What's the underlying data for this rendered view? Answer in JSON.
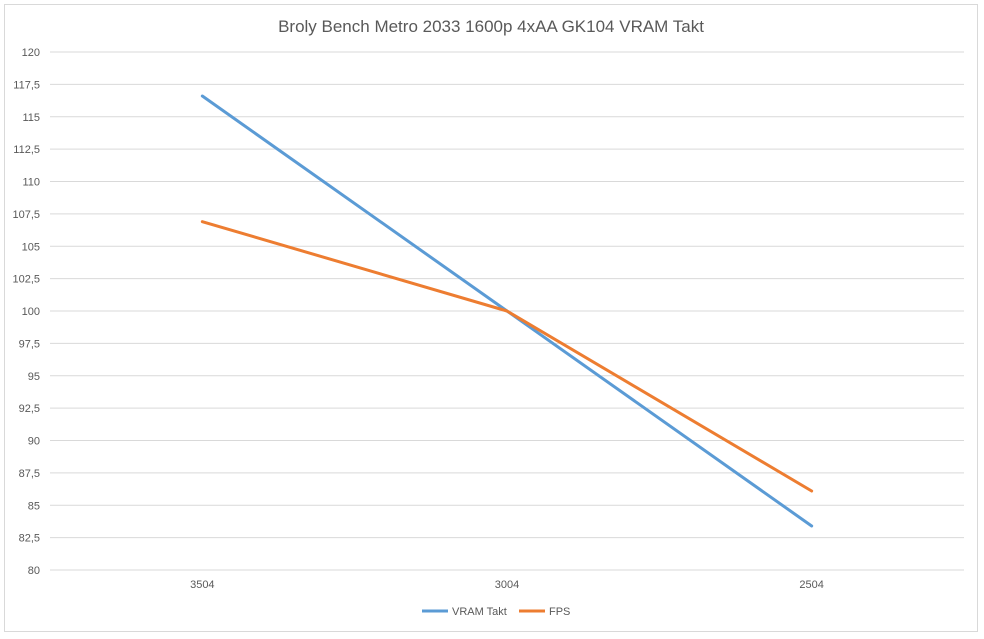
{
  "chart_data": {
    "type": "line",
    "title": "Broly Bench Metro 2033 1600p 4xAA GK104 VRAM Takt",
    "xlabel": "",
    "ylabel": "",
    "categories": [
      "3504",
      "3004",
      "2504"
    ],
    "ylim": [
      80,
      120
    ],
    "yticks": [
      "80",
      "82,5",
      "85",
      "87,5",
      "90",
      "92,5",
      "95",
      "97,5",
      "100",
      "102,5",
      "105",
      "107,5",
      "110",
      "112,5",
      "115",
      "117,5",
      "120"
    ],
    "grid": true,
    "legend_position": "bottom",
    "series": [
      {
        "name": "VRAM Takt",
        "color": "#5b9bd5",
        "values": [
          116.6,
          100,
          83.4
        ]
      },
      {
        "name": "FPS",
        "color": "#ed7d31",
        "values": [
          106.9,
          100,
          86.1
        ]
      }
    ]
  }
}
